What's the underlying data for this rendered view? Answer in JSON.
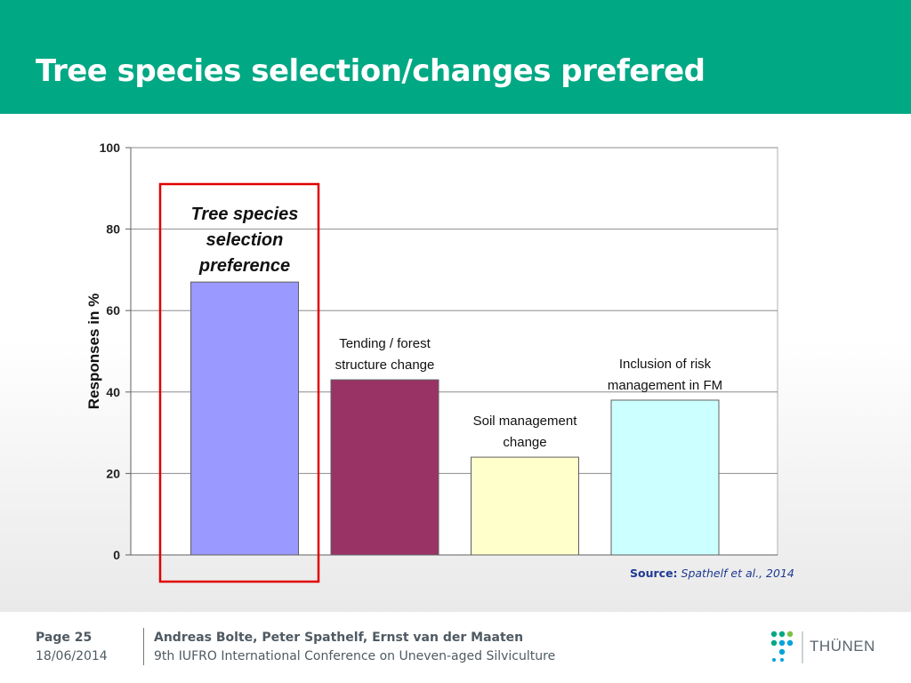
{
  "header": {
    "title": "Tree species selection/changes prefered"
  },
  "chart_data": {
    "type": "bar",
    "categories": [
      "Tree species selection preference",
      "Tending / forest structure change",
      "Soil management change",
      "Inclusion of risk management in FM"
    ],
    "category_label_lines": [
      [
        "Tree species",
        "selection",
        "preference"
      ],
      [
        "Tending / forest",
        "structure change"
      ],
      [
        "Soil management",
        "change"
      ],
      [
        "Inclusion of risk",
        "management in FM"
      ]
    ],
    "values": [
      67,
      43,
      24,
      38
    ],
    "colors": [
      "#9999ff",
      "#993366",
      "#ffffcc",
      "#ccffff"
    ],
    "highlight_index": 0,
    "highlight_color": "#e00000",
    "ylabel": "Responses in %",
    "ylim": [
      0,
      100
    ],
    "yticks": [
      0,
      20,
      40,
      60,
      80,
      100
    ],
    "grid": true
  },
  "source": {
    "label": "Source:",
    "text": "Spathelf et al., 2014"
  },
  "footer": {
    "page": "Page 25",
    "date": "18/06/2014",
    "authors": "Andreas Bolte, Peter Spathelf, Ernst van der Maaten",
    "conference": "9th IUFRO International Conference on Uneven-aged Silviculture",
    "logo_text": "THÜNEN"
  }
}
